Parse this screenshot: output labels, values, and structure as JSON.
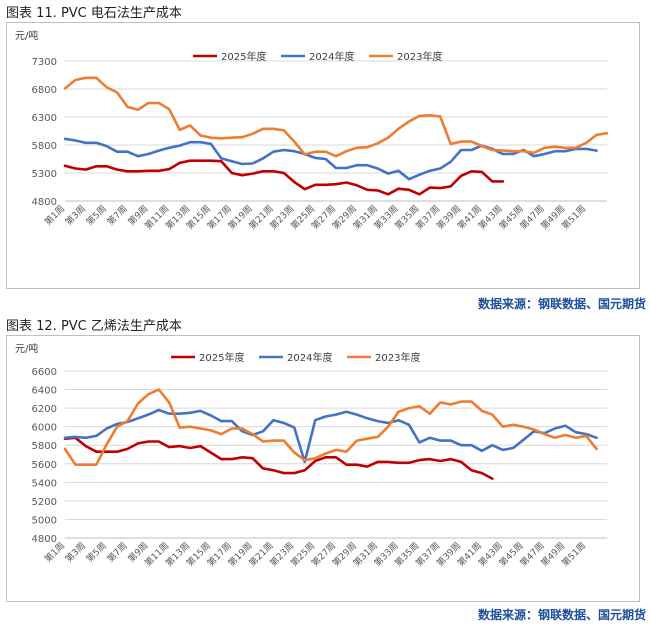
{
  "charts": [
    {
      "title": "图表 11.  PVC 电石法生产成本",
      "source": "数据来源：钢联数据、国元期货"
    },
    {
      "title": "图表 12.  PVC 乙烯法生产成本",
      "source": "数据来源：钢联数据、国元期货"
    }
  ],
  "colors": {
    "s2025": "#c00000",
    "s2024": "#4472c4",
    "s2023": "#ed7d31"
  },
  "chart_data": [
    {
      "type": "line",
      "title": "PVC 电石法生产成本",
      "ylabel": "元/吨",
      "ylim": [
        4800,
        7300
      ],
      "yticks": [
        4800,
        5300,
        5800,
        6300,
        6800,
        7300
      ],
      "x_ticks": [
        "第1周",
        "第3周",
        "第5周",
        "第7周",
        "第9周",
        "第11周",
        "第13周",
        "第15周",
        "第17周",
        "第19周",
        "第21周",
        "第23周",
        "第25周",
        "第27周",
        "第29周",
        "第31周",
        "第33周",
        "第35周",
        "第37周",
        "第39周",
        "第41周",
        "第43周",
        "第45周",
        "第47周",
        "第49周",
        "第51周"
      ],
      "series": [
        {
          "name": "2025年度",
          "values": [
            5430,
            5380,
            5360,
            5420,
            5420,
            5360,
            5330,
            5330,
            5340,
            5340,
            5370,
            5480,
            5520,
            5520,
            5520,
            5510,
            5300,
            5260,
            5290,
            5330,
            5330,
            5300,
            5140,
            5010,
            5090,
            5090,
            5100,
            5130,
            5080,
            5000,
            4990,
            4920,
            5020,
            5000,
            4920,
            5040,
            5030,
            5060,
            5250,
            5330,
            5320,
            5150,
            5150
          ]
        },
        {
          "name": "2024年度",
          "values": [
            5910,
            5880,
            5840,
            5840,
            5780,
            5680,
            5680,
            5600,
            5640,
            5700,
            5750,
            5790,
            5850,
            5850,
            5820,
            5560,
            5510,
            5460,
            5470,
            5560,
            5680,
            5710,
            5690,
            5640,
            5570,
            5550,
            5390,
            5390,
            5440,
            5440,
            5380,
            5290,
            5340,
            5190,
            5270,
            5340,
            5380,
            5500,
            5710,
            5710,
            5790,
            5730,
            5640,
            5640,
            5710,
            5600,
            5640,
            5690,
            5690,
            5730,
            5730,
            5700
          ]
        },
        {
          "name": "2023年度",
          "values": [
            6810,
            6960,
            7000,
            7000,
            6830,
            6740,
            6480,
            6430,
            6550,
            6550,
            6440,
            6070,
            6150,
            5970,
            5930,
            5920,
            5930,
            5940,
            6000,
            6090,
            6090,
            6060,
            5860,
            5630,
            5680,
            5680,
            5600,
            5690,
            5750,
            5760,
            5830,
            5930,
            6090,
            6220,
            6320,
            6330,
            6310,
            5820,
            5860,
            5860,
            5780,
            5710,
            5700,
            5690,
            5690,
            5660,
            5750,
            5770,
            5750,
            5750,
            5840,
            5980,
            6010
          ]
        }
      ]
    },
    {
      "type": "line",
      "title": "PVC 乙烯法生产成本",
      "ylabel": "元/吨",
      "ylim": [
        4800,
        6600
      ],
      "yticks": [
        4800,
        5000,
        5200,
        5400,
        5600,
        5800,
        6000,
        6200,
        6400,
        6600
      ],
      "x_ticks": [
        "第1周",
        "第3周",
        "第5周",
        "第7周",
        "第9周",
        "第11周",
        "第13周",
        "第15周",
        "第17周",
        "第19周",
        "第21周",
        "第23周",
        "第25周",
        "第27周",
        "第29周",
        "第31周",
        "第33周",
        "第35周",
        "第37周",
        "第39周",
        "第41周",
        "第43周",
        "第45周",
        "第47周",
        "第49周",
        "第51周"
      ],
      "series": [
        {
          "name": "2025年度",
          "values": [
            5870,
            5880,
            5790,
            5730,
            5730,
            5730,
            5760,
            5820,
            5840,
            5840,
            5780,
            5790,
            5770,
            5790,
            5720,
            5650,
            5650,
            5670,
            5660,
            5550,
            5530,
            5500,
            5500,
            5530,
            5630,
            5670,
            5670,
            5590,
            5590,
            5570,
            5620,
            5620,
            5610,
            5610,
            5640,
            5650,
            5630,
            5650,
            5620,
            5530,
            5500,
            5440
          ]
        },
        {
          "name": "2024年度",
          "values": [
            5880,
            5890,
            5880,
            5900,
            5980,
            6030,
            6050,
            6090,
            6130,
            6180,
            6140,
            6140,
            6150,
            6170,
            6120,
            6060,
            6060,
            5950,
            5910,
            5950,
            6070,
            6040,
            5990,
            5620,
            6070,
            6110,
            6130,
            6160,
            6130,
            6090,
            6060,
            6040,
            6070,
            6020,
            5830,
            5880,
            5850,
            5850,
            5800,
            5800,
            5740,
            5800,
            5750,
            5770,
            5860,
            5950,
            5930,
            5980,
            6010,
            5940,
            5920,
            5880
          ]
        },
        {
          "name": "2023年度",
          "values": [
            5760,
            5590,
            5590,
            5590,
            5810,
            6000,
            6060,
            6250,
            6350,
            6400,
            6260,
            5990,
            6000,
            5980,
            5960,
            5920,
            5980,
            5980,
            5920,
            5840,
            5850,
            5850,
            5720,
            5640,
            5660,
            5710,
            5750,
            5730,
            5850,
            5870,
            5890,
            6000,
            6160,
            6200,
            6220,
            6140,
            6260,
            6240,
            6270,
            6270,
            6170,
            6130,
            6000,
            6020,
            6000,
            5970,
            5920,
            5880,
            5910,
            5880,
            5900,
            5760
          ]
        }
      ]
    }
  ]
}
